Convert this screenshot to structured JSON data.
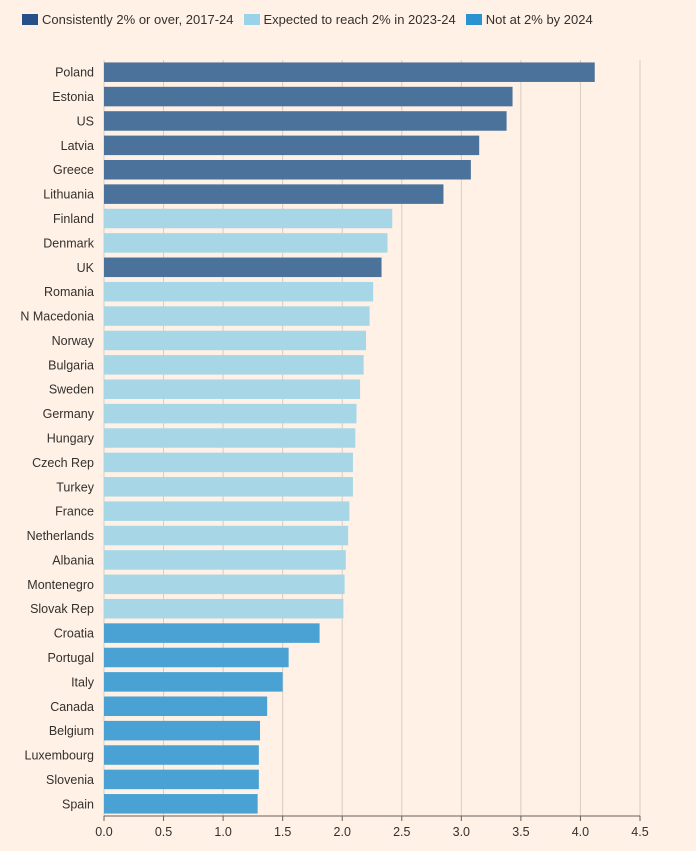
{
  "chart_data": {
    "type": "bar",
    "orientation": "horizontal",
    "title": "",
    "xlabel": "",
    "ylabel": "",
    "xlim": [
      0,
      4.5
    ],
    "xticks": [
      0,
      0.5,
      1,
      1.5,
      2,
      2.5,
      3,
      3.5,
      4,
      4.5
    ],
    "xtick_labels": [
      "0.0",
      "0.5",
      "1.0",
      "1.5",
      "2.0",
      "2.5",
      "3.0",
      "3.5",
      "4.0",
      "4.5"
    ],
    "grid": "vertical",
    "legend_position": "top-left",
    "legend": [
      {
        "key": "consistent",
        "label": "Consistently 2% or over, 2017-24",
        "color": "#4a729a",
        "swatch_color": "#26508a"
      },
      {
        "key": "expected",
        "label": "Expected to reach 2% in 2023-24",
        "color": "#a7d7e7",
        "swatch_color": "#9ad2ea"
      },
      {
        "key": "not",
        "label": "Not at 2% by 2024",
        "color": "#4aa1d3",
        "swatch_color": "#2b92d2"
      }
    ],
    "categories": [
      "Poland",
      "Estonia",
      "US",
      "Latvia",
      "Greece",
      "Lithuania",
      "Finland",
      "Denmark",
      "UK",
      "Romania",
      "N Macedonia",
      "Norway",
      "Bulgaria",
      "Sweden",
      "Germany",
      "Hungary",
      "Czech Rep",
      "Turkey",
      "France",
      "Netherlands",
      "Albania",
      "Montenegro",
      "Slovak Rep",
      "Croatia",
      "Portugal",
      "Italy",
      "Canada",
      "Belgium",
      "Luxembourg",
      "Slovenia",
      "Spain"
    ],
    "values": [
      4.12,
      3.43,
      3.38,
      3.15,
      3.08,
      2.85,
      2.42,
      2.38,
      2.33,
      2.26,
      2.23,
      2.2,
      2.18,
      2.15,
      2.12,
      2.11,
      2.09,
      2.09,
      2.06,
      2.05,
      2.03,
      2.02,
      2.01,
      1.81,
      1.55,
      1.5,
      1.37,
      1.31,
      1.3,
      1.3,
      1.29
    ],
    "groups": [
      "consistent",
      "consistent",
      "consistent",
      "consistent",
      "consistent",
      "consistent",
      "expected",
      "expected",
      "consistent",
      "expected",
      "expected",
      "expected",
      "expected",
      "expected",
      "expected",
      "expected",
      "expected",
      "expected",
      "expected",
      "expected",
      "expected",
      "expected",
      "expected",
      "not",
      "not",
      "not",
      "not",
      "not",
      "not",
      "not",
      "not"
    ]
  }
}
